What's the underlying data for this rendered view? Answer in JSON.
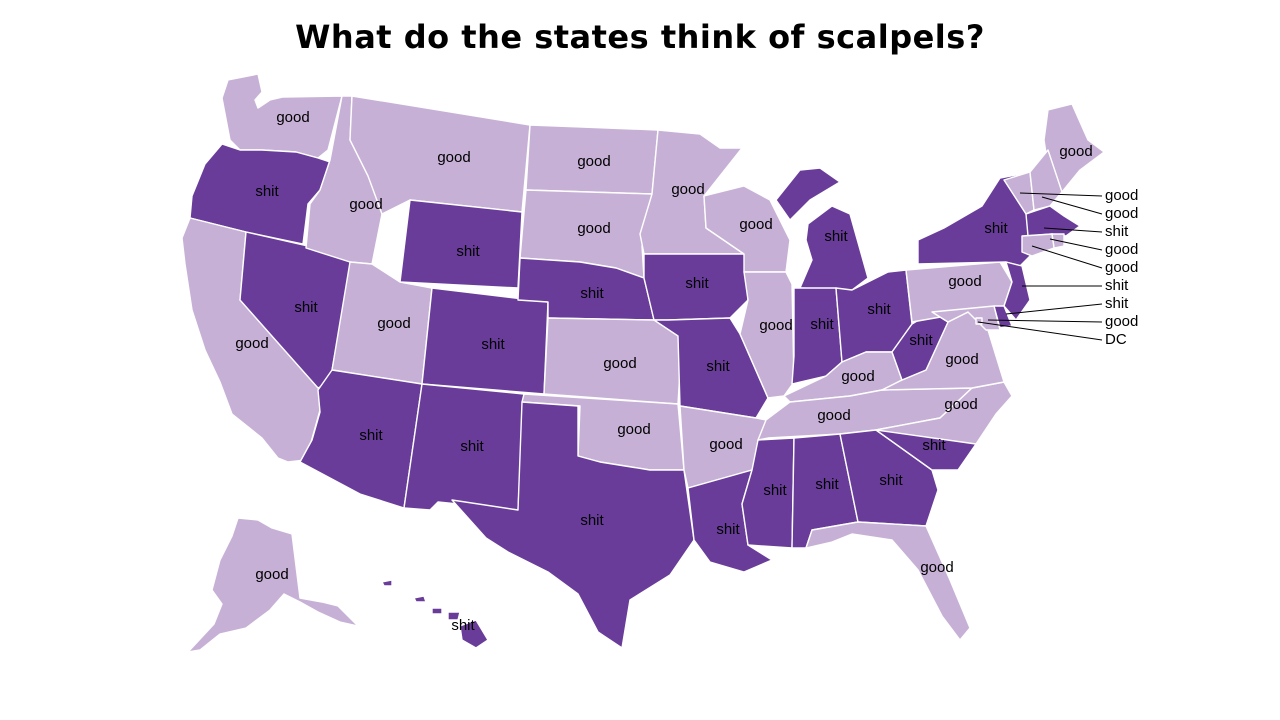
{
  "title": "What do the states think of scalpels?",
  "colors": {
    "good": "#c7b0d6",
    "shit": "#693c9a"
  },
  "states": [
    {
      "id": "WA",
      "value": "good"
    },
    {
      "id": "OR",
      "value": "shit"
    },
    {
      "id": "CA",
      "value": "good"
    },
    {
      "id": "NV",
      "value": "shit"
    },
    {
      "id": "ID",
      "value": "good"
    },
    {
      "id": "MT",
      "value": "good"
    },
    {
      "id": "WY",
      "value": "shit"
    },
    {
      "id": "UT",
      "value": "good"
    },
    {
      "id": "AZ",
      "value": "shit"
    },
    {
      "id": "CO",
      "value": "shit"
    },
    {
      "id": "NM",
      "value": "shit"
    },
    {
      "id": "ND",
      "value": "good"
    },
    {
      "id": "SD",
      "value": "good"
    },
    {
      "id": "NE",
      "value": "shit"
    },
    {
      "id": "KS",
      "value": "good"
    },
    {
      "id": "OK",
      "value": "good"
    },
    {
      "id": "TX",
      "value": "shit"
    },
    {
      "id": "MN",
      "value": "good"
    },
    {
      "id": "IA",
      "value": "shit"
    },
    {
      "id": "MO",
      "value": "shit"
    },
    {
      "id": "AR",
      "value": "good"
    },
    {
      "id": "LA",
      "value": "shit"
    },
    {
      "id": "WI",
      "value": "good"
    },
    {
      "id": "IL",
      "value": "good"
    },
    {
      "id": "MI",
      "value": "shit"
    },
    {
      "id": "IN",
      "value": "shit"
    },
    {
      "id": "OH",
      "value": "shit"
    },
    {
      "id": "KY",
      "value": "good"
    },
    {
      "id": "TN",
      "value": "good"
    },
    {
      "id": "MS",
      "value": "shit"
    },
    {
      "id": "AL",
      "value": "shit"
    },
    {
      "id": "GA",
      "value": "shit"
    },
    {
      "id": "FL",
      "value": "good"
    },
    {
      "id": "SC",
      "value": "shit"
    },
    {
      "id": "NC",
      "value": "good"
    },
    {
      "id": "VA",
      "value": "good"
    },
    {
      "id": "WV",
      "value": "shit"
    },
    {
      "id": "PA",
      "value": "good"
    },
    {
      "id": "NY",
      "value": "shit"
    },
    {
      "id": "ME",
      "value": "good"
    },
    {
      "id": "VT",
      "value": "good"
    },
    {
      "id": "NH",
      "value": "good"
    },
    {
      "id": "MA",
      "value": "shit"
    },
    {
      "id": "RI",
      "value": "good"
    },
    {
      "id": "CT",
      "value": "good"
    },
    {
      "id": "NJ",
      "value": "shit"
    },
    {
      "id": "DE",
      "value": "shit"
    },
    {
      "id": "MD",
      "value": "good"
    },
    {
      "id": "DC",
      "value": "good"
    },
    {
      "id": "AK",
      "value": "good"
    },
    {
      "id": "HI",
      "value": "shit"
    }
  ],
  "callouts": [
    {
      "id": "VT",
      "text": "good"
    },
    {
      "id": "NH",
      "text": "good"
    },
    {
      "id": "MA",
      "text": "shit"
    },
    {
      "id": "RI",
      "text": "good"
    },
    {
      "id": "CT",
      "text": "good"
    },
    {
      "id": "NJ",
      "text": "shit"
    },
    {
      "id": "DE",
      "text": "shit"
    },
    {
      "id": "MD",
      "text": "good"
    },
    {
      "id": "DC",
      "text": "DC"
    }
  ]
}
